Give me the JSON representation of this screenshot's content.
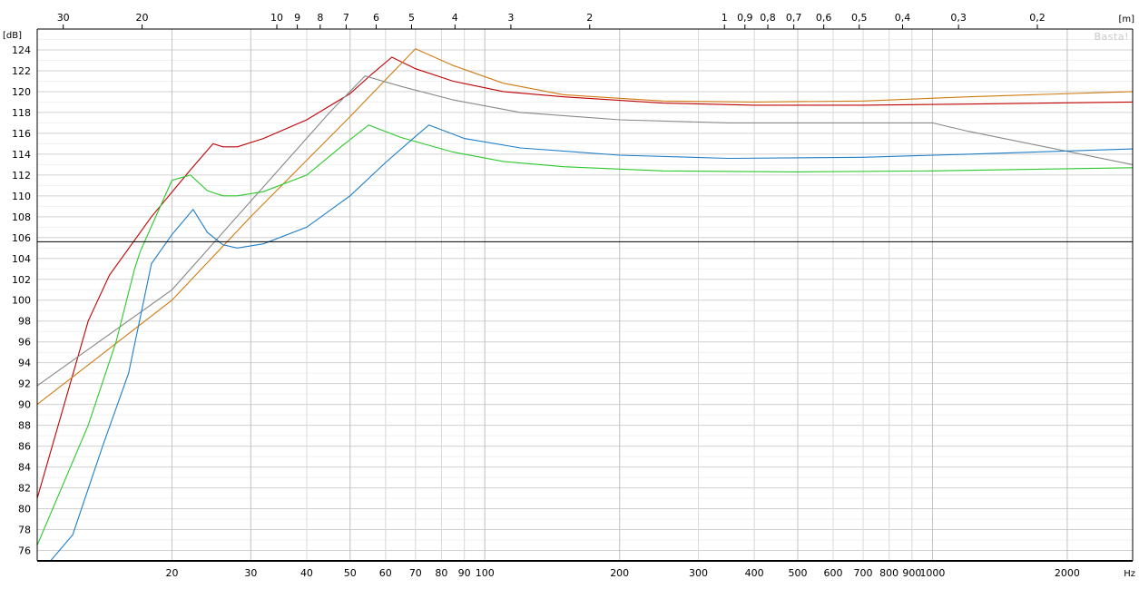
{
  "chart_data": {
    "type": "line",
    "y_unit": "[dB]",
    "x_unit": "Hz",
    "top_unit": "[m]",
    "watermark": "Basta!",
    "x_scale": "log",
    "xlim": [
      10,
      2800
    ],
    "ylim": [
      75,
      126
    ],
    "y_ticks": [
      76,
      78,
      80,
      82,
      84,
      86,
      88,
      90,
      92,
      94,
      96,
      98,
      100,
      102,
      104,
      106,
      108,
      110,
      112,
      114,
      116,
      118,
      120,
      122,
      124
    ],
    "x_ticks": [
      {
        "v": 20,
        "label": "20"
      },
      {
        "v": 30,
        "label": "30"
      },
      {
        "v": 40,
        "label": "40"
      },
      {
        "v": 50,
        "label": "50"
      },
      {
        "v": 60,
        "label": "60"
      },
      {
        "v": 70,
        "label": "70"
      },
      {
        "v": 80,
        "label": "80"
      },
      {
        "v": 90,
        "label": "90"
      },
      {
        "v": 100,
        "label": "100"
      },
      {
        "v": 200,
        "label": "200"
      },
      {
        "v": 300,
        "label": "300"
      },
      {
        "v": 400,
        "label": "400"
      },
      {
        "v": 500,
        "label": "500"
      },
      {
        "v": 600,
        "label": "600"
      },
      {
        "v": 700,
        "label": "700"
      },
      {
        "v": 800,
        "label": "800"
      },
      {
        "v": 900,
        "label": "900"
      },
      {
        "v": 1000,
        "label": "1000"
      },
      {
        "v": 2000,
        "label": "2000"
      }
    ],
    "top_ticks": [
      {
        "m": 30,
        "label": "30"
      },
      {
        "m": 20,
        "label": "20"
      },
      {
        "m": 10,
        "label": "10"
      },
      {
        "m": 9,
        "label": "9"
      },
      {
        "m": 8,
        "label": "8"
      },
      {
        "m": 7,
        "label": "7"
      },
      {
        "m": 6,
        "label": "6"
      },
      {
        "m": 5,
        "label": "5"
      },
      {
        "m": 4,
        "label": "4"
      },
      {
        "m": 3,
        "label": "3"
      },
      {
        "m": 2,
        "label": "2"
      },
      {
        "m": 1,
        "label": "1"
      },
      {
        "m": 0.9,
        "label": "0,9"
      },
      {
        "m": 0.8,
        "label": "0,8"
      },
      {
        "m": 0.7,
        "label": "0,7"
      },
      {
        "m": 0.6,
        "label": "0,6"
      },
      {
        "m": 0.5,
        "label": "0,5"
      },
      {
        "m": 0.4,
        "label": "0,4"
      },
      {
        "m": 0.3,
        "label": "0,3"
      },
      {
        "m": 0.2,
        "label": "0,2"
      }
    ],
    "reference_line": 105.6,
    "grid": true,
    "series": [
      {
        "color": "#c00000",
        "points": [
          [
            10,
            81
          ],
          [
            13,
            98
          ],
          [
            14.5,
            102.4
          ],
          [
            18,
            108
          ],
          [
            22,
            112.5
          ],
          [
            24.7,
            115
          ],
          [
            26,
            114.7
          ],
          [
            28,
            114.7
          ],
          [
            32,
            115.5
          ],
          [
            40,
            117.3
          ],
          [
            50,
            119.8
          ],
          [
            56,
            121.7
          ],
          [
            62,
            123.3
          ],
          [
            70,
            122.2
          ],
          [
            85,
            121
          ],
          [
            110,
            120
          ],
          [
            150,
            119.5
          ],
          [
            250,
            118.9
          ],
          [
            400,
            118.7
          ],
          [
            700,
            118.7
          ],
          [
            1200,
            118.8
          ],
          [
            2800,
            119
          ]
        ]
      },
      {
        "color": "#d07a10",
        "points": [
          [
            10,
            90
          ],
          [
            20,
            100
          ],
          [
            30,
            108
          ],
          [
            50,
            117.6
          ],
          [
            70,
            124.1
          ],
          [
            85,
            122.5
          ],
          [
            110,
            120.8
          ],
          [
            150,
            119.7
          ],
          [
            250,
            119.1
          ],
          [
            400,
            119
          ],
          [
            700,
            119.1
          ],
          [
            1200,
            119.5
          ],
          [
            2800,
            120
          ]
        ]
      },
      {
        "color": "#888888",
        "points": [
          [
            10,
            91.8
          ],
          [
            20,
            101
          ],
          [
            30,
            109.5
          ],
          [
            45,
            118
          ],
          [
            54,
            121.5
          ],
          [
            65,
            120.5
          ],
          [
            85,
            119.2
          ],
          [
            120,
            118
          ],
          [
            200,
            117.3
          ],
          [
            350,
            117
          ],
          [
            700,
            117
          ],
          [
            1000,
            117
          ],
          [
            1200,
            116.2
          ],
          [
            2800,
            113
          ]
        ]
      },
      {
        "color": "#2ac82a",
        "points": [
          [
            10,
            76.5
          ],
          [
            13,
            88
          ],
          [
            15,
            96
          ],
          [
            16.5,
            103
          ],
          [
            17,
            104.7
          ],
          [
            20,
            111.5
          ],
          [
            22,
            112
          ],
          [
            24,
            110.5
          ],
          [
            26,
            110
          ],
          [
            28,
            110
          ],
          [
            32,
            110.4
          ],
          [
            40,
            112
          ],
          [
            48,
            114.8
          ],
          [
            55,
            116.8
          ],
          [
            65,
            115.6
          ],
          [
            85,
            114.2
          ],
          [
            110,
            113.3
          ],
          [
            150,
            112.8
          ],
          [
            250,
            112.4
          ],
          [
            500,
            112.3
          ],
          [
            1000,
            112.4
          ],
          [
            2800,
            112.7
          ]
        ]
      },
      {
        "color": "#1e7ec8",
        "points": [
          [
            10,
            73.5
          ],
          [
            12,
            77.5
          ],
          [
            14,
            86
          ],
          [
            16,
            93
          ],
          [
            18,
            103.5
          ],
          [
            20,
            106.3
          ],
          [
            22.3,
            108.7
          ],
          [
            24,
            106.5
          ],
          [
            26,
            105.3
          ],
          [
            28,
            105
          ],
          [
            32,
            105.4
          ],
          [
            40,
            107
          ],
          [
            50,
            110
          ],
          [
            60,
            113.2
          ],
          [
            70,
            115.7
          ],
          [
            75,
            116.8
          ],
          [
            90,
            115.5
          ],
          [
            120,
            114.6
          ],
          [
            200,
            113.9
          ],
          [
            350,
            113.6
          ],
          [
            700,
            113.7
          ],
          [
            1200,
            114
          ],
          [
            2800,
            114.5
          ]
        ]
      }
    ]
  }
}
